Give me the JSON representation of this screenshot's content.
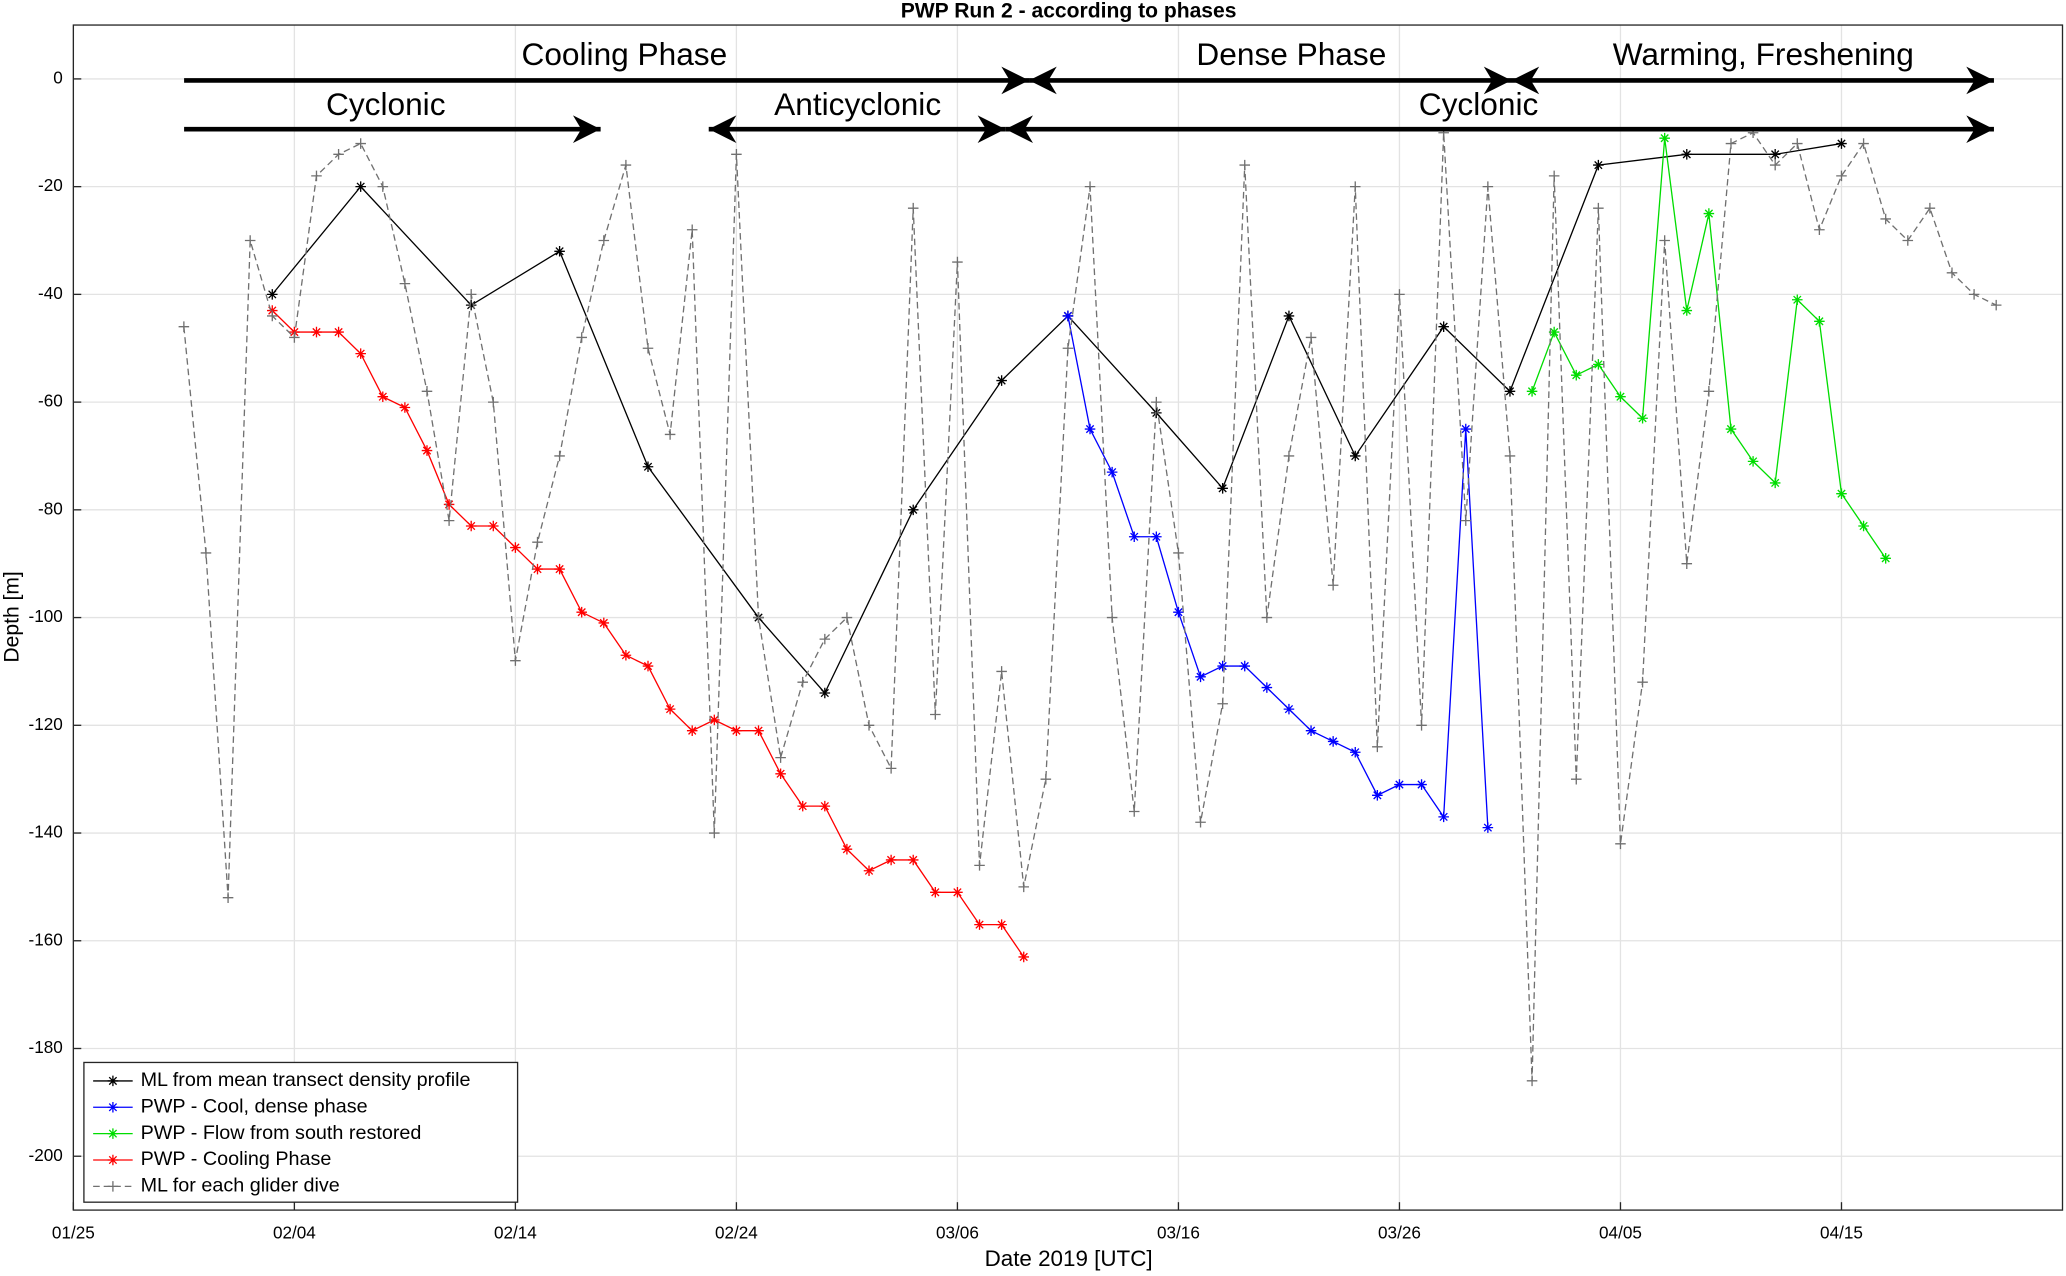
{
  "chart_data": {
    "type": "line",
    "title": "PWP Run 2 - according to phases",
    "x_label": "Date 2019 [UTC]",
    "y_label": "Depth [m]",
    "xlim": [
      "01/25",
      "04/25"
    ],
    "xticks": [
      "01/25",
      "02/04",
      "02/14",
      "02/24",
      "03/06",
      "03/16",
      "03/26",
      "04/05",
      "04/15"
    ],
    "ylim": [
      -210,
      10
    ],
    "yticks": [
      -200,
      -180,
      -160,
      -140,
      -120,
      -100,
      -80,
      -60,
      -40,
      -20,
      0
    ],
    "grid": true,
    "legend": "lower left",
    "annotations": [
      "Cooling Phase",
      "Dense Phase",
      "Warming, Freshening",
      "Cyclonic",
      "Anticyclonic",
      "Cyclonic"
    ],
    "series": [
      {
        "name": "ML from mean transect density profile",
        "color": "#000000",
        "marker": "*",
        "linestyle": "solid",
        "x": [
          "02/03",
          "02/07",
          "02/12",
          "02/16",
          "02/20",
          "02/25",
          "02/28",
          "03/04",
          "03/08",
          "03/11",
          "03/15",
          "03/18",
          "03/21",
          "03/24",
          "03/28",
          "03/31",
          "04/04",
          "04/08",
          "04/12",
          "04/15"
        ],
        "values": [
          -40,
          -20,
          -42,
          -32,
          -72,
          -100,
          -114,
          -80,
          -56,
          -44,
          -62,
          -76,
          -44,
          -70,
          -46,
          -58,
          -16,
          -14,
          -14,
          -12
        ]
      },
      {
        "name": "PWP - Cool, dense phase",
        "color": "#0000ff",
        "marker": "*",
        "linestyle": "solid",
        "x": [
          "03/11",
          "03/12",
          "03/13",
          "03/14",
          "03/15",
          "03/16",
          "03/17",
          "03/18",
          "03/19",
          "03/20",
          "03/21",
          "03/22",
          "03/23",
          "03/24",
          "03/25",
          "03/26",
          "03/27",
          "03/28",
          "03/29",
          "03/30"
        ],
        "values": [
          -44,
          -65,
          -73,
          -85,
          -85,
          -99,
          -111,
          -109,
          -109,
          -113,
          -117,
          -121,
          -123,
          -125,
          -133,
          -131,
          -131,
          -137,
          -65,
          -139
        ]
      },
      {
        "name": "PWP - Flow from south restored",
        "color": "#00dd00",
        "marker": "*",
        "linestyle": "solid",
        "x": [
          "04/01",
          "04/02",
          "04/03",
          "04/04",
          "04/05",
          "04/06",
          "04/07",
          "04/08",
          "04/09",
          "04/10",
          "04/11",
          "04/12",
          "04/13",
          "04/14",
          "04/15",
          "04/16",
          "04/17"
        ],
        "values": [
          -58,
          -47,
          -55,
          -53,
          -59,
          -63,
          -11,
          -43,
          -25,
          -65,
          -71,
          -75,
          -41,
          -45,
          -77,
          -83,
          -89
        ]
      },
      {
        "name": "PWP - Cooling Phase",
        "color": "#ff0000",
        "marker": "*",
        "linestyle": "solid",
        "x": [
          "02/03",
          "02/04",
          "02/05",
          "02/06",
          "02/07",
          "02/08",
          "02/09",
          "02/10",
          "02/11",
          "02/12",
          "02/13",
          "02/14",
          "02/15",
          "02/16",
          "02/17",
          "02/18",
          "02/19",
          "02/20",
          "02/21",
          "02/22",
          "02/23",
          "02/24",
          "02/25",
          "02/26",
          "02/27",
          "02/28",
          "03/01",
          "03/02",
          "03/03",
          "03/04",
          "03/05",
          "03/06",
          "03/07",
          "03/08",
          "03/09"
        ],
        "values": [
          -43,
          -47,
          -47,
          -47,
          -51,
          -59,
          -61,
          -69,
          -79,
          -83,
          -83,
          -87,
          -91,
          -91,
          -99,
          -101,
          -107,
          -109,
          -117,
          -121,
          -119,
          -121,
          -121,
          -129,
          -135,
          -135,
          -143,
          -147,
          -145,
          -145,
          -151,
          -151,
          -157,
          -157,
          -163
        ]
      },
      {
        "name": "ML for each glider dive",
        "color": "#707070",
        "marker": "+",
        "linestyle": "dashed",
        "x": [
          "01/30",
          "01/31",
          "02/01",
          "02/02",
          "02/03",
          "02/04",
          "02/05",
          "02/06",
          "02/07",
          "02/08",
          "02/09",
          "02/10",
          "02/11",
          "02/12",
          "02/13",
          "02/14",
          "02/15",
          "02/16",
          "02/17",
          "02/18",
          "02/19",
          "02/20",
          "02/21",
          "02/22",
          "02/23",
          "02/24",
          "02/25",
          "02/26",
          "02/27",
          "02/28",
          "03/01",
          "03/02",
          "03/03",
          "03/04",
          "03/05",
          "03/06",
          "03/07",
          "03/08",
          "03/09",
          "03/10",
          "03/11",
          "03/12",
          "03/13",
          "03/14",
          "03/15",
          "03/16",
          "03/17",
          "03/18",
          "03/19",
          "03/20",
          "03/21",
          "03/22",
          "03/23",
          "03/24",
          "03/25",
          "03/26",
          "03/27",
          "03/28",
          "03/29",
          "03/30",
          "03/31",
          "04/01",
          "04/02",
          "04/03",
          "04/04",
          "04/05",
          "04/06",
          "04/07",
          "04/08",
          "04/09",
          "04/10",
          "04/11",
          "04/12",
          "04/13",
          "04/14",
          "04/15",
          "04/16",
          "04/17",
          "04/18",
          "04/19",
          "04/20",
          "04/21",
          "04/22"
        ],
        "values": [
          -46,
          -88,
          -152,
          -30,
          -44,
          -48,
          -18,
          -14,
          -12,
          -20,
          -38,
          -58,
          -82,
          -40,
          -60,
          -108,
          -86,
          -70,
          -48,
          -30,
          -16,
          -50,
          -66,
          -28,
          -140,
          -14,
          -100,
          -126,
          -112,
          -104,
          -100,
          -120,
          -128,
          -24,
          -118,
          -34,
          -146,
          -110,
          -150,
          -130,
          -50,
          -20,
          -100,
          -136,
          -60,
          -88,
          -138,
          -116,
          -16,
          -100,
          -70,
          -48,
          -94,
          -20,
          -124,
          -40,
          -120,
          -10,
          -82,
          -20,
          -70,
          -186,
          -18,
          -130,
          -24,
          -142,
          -112,
          -30,
          -90,
          -58,
          -12,
          -10,
          -16,
          -12,
          -28,
          -18,
          -12,
          -26,
          -30,
          -24,
          -36,
          -40,
          -42
        ]
      }
    ]
  }
}
